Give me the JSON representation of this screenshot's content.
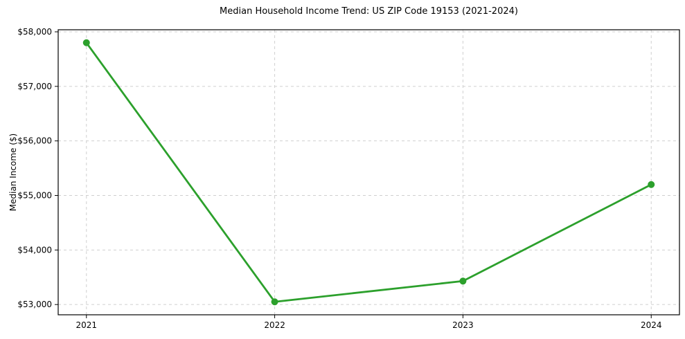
{
  "chart_data": {
    "type": "line",
    "title": "Median Household Income Trend: US ZIP Code 19153 (2021-2024)",
    "xlabel": "",
    "ylabel": "Median Income ($)",
    "categories": [
      2021,
      2022,
      2023,
      2024
    ],
    "xtick_labels": [
      "2021",
      "2022",
      "2023",
      "2024"
    ],
    "series": [
      {
        "name": "Median Household Income",
        "values": [
          57800,
          53050,
          53430,
          55200
        ]
      }
    ],
    "yticks": [
      53000,
      54000,
      55000,
      56000,
      57000,
      58000
    ],
    "ytick_labels": [
      "$53,000",
      "$54,000",
      "$55,000",
      "$56,000",
      "$57,000",
      "$58,000"
    ],
    "xlim": [
      2020.85,
      2024.15
    ],
    "ylim": [
      52812,
      58038
    ],
    "grid": true,
    "grid_style": "dashed",
    "legend": "none",
    "line_color": "#2ca02c",
    "marker": "circle",
    "grid_color": "#cfcfcf",
    "spine_color": "#000000",
    "background": "#ffffff"
  }
}
